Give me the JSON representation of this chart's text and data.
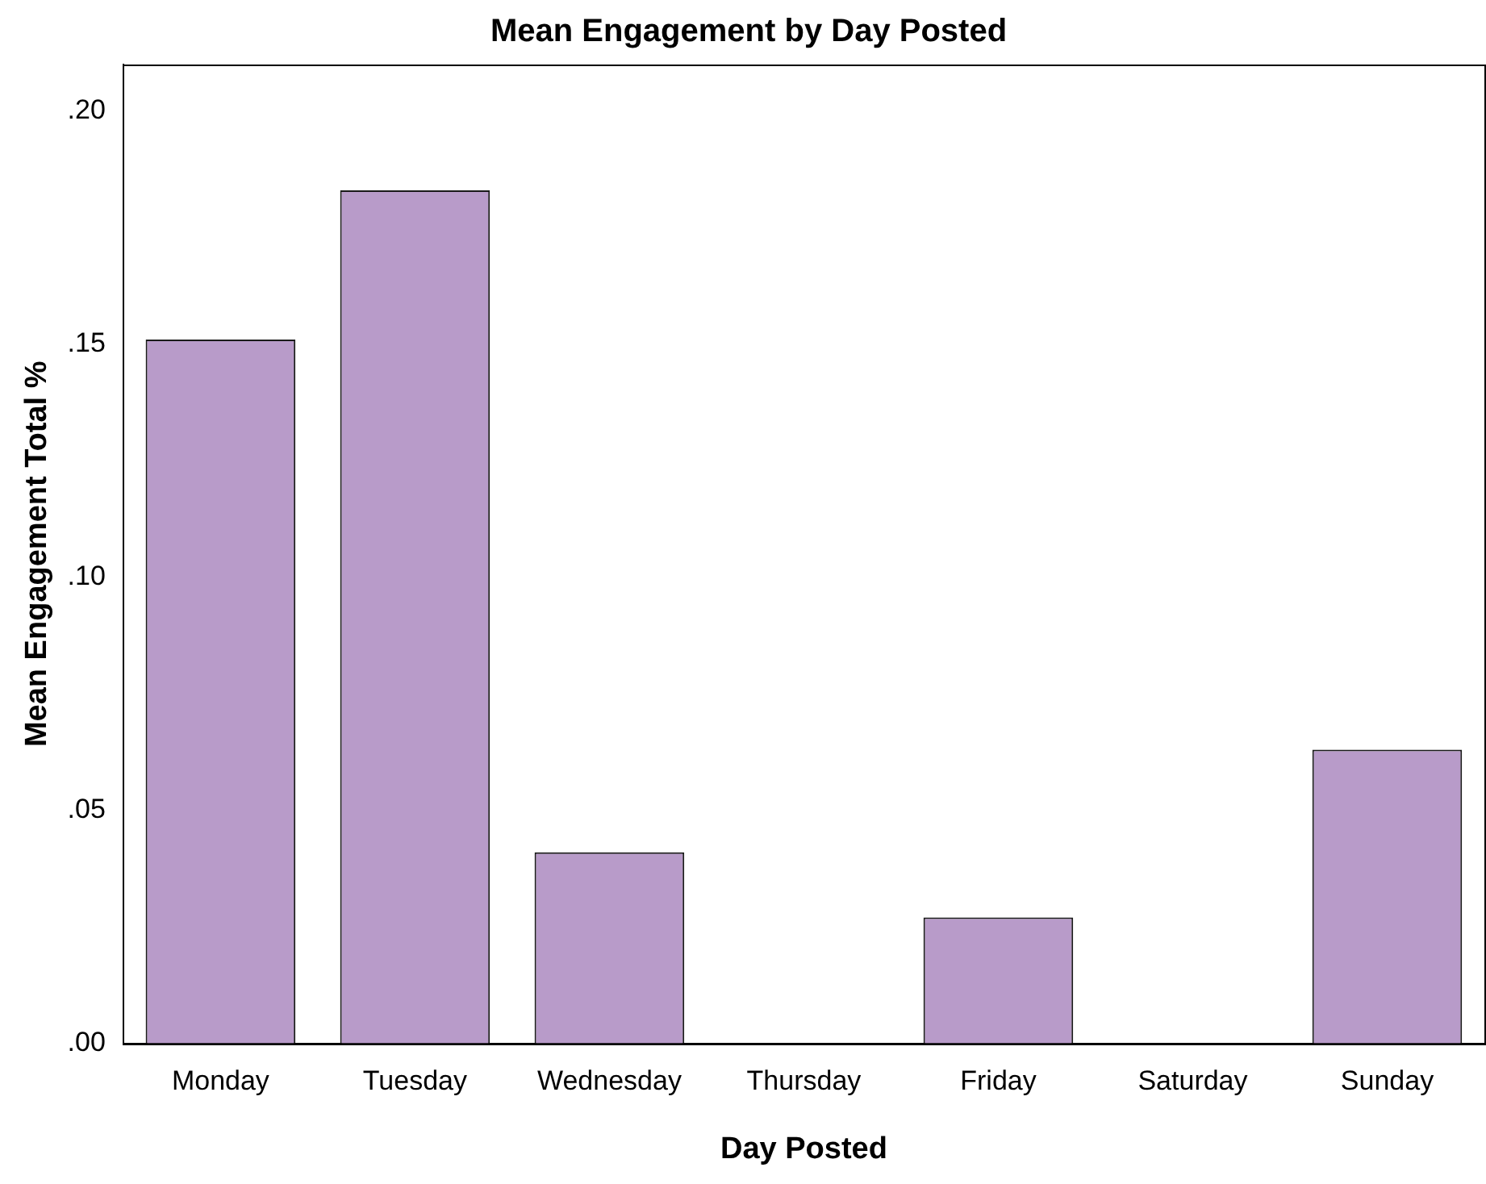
{
  "chart_data": {
    "type": "bar",
    "title": "Mean Engagement by Day Posted",
    "xlabel": "Day Posted",
    "ylabel": "Mean Engagement Total %",
    "categories": [
      "Monday",
      "Tuesday",
      "Wednesday",
      "Thursday",
      "Friday",
      "Saturday",
      "Sunday"
    ],
    "values": [
      0.151,
      0.183,
      0.041,
      0,
      0.027,
      0,
      0.063
    ],
    "color": "#b89bc9",
    "ylim": [
      0,
      0.21
    ],
    "yticks": [
      {
        "value": 0,
        "label": ".00"
      },
      {
        "value": 0.05,
        "label": ".05"
      },
      {
        "value": 0.1,
        "label": ".10"
      },
      {
        "value": 0.15,
        "label": ".15"
      },
      {
        "value": 0.2,
        "label": ".20"
      }
    ],
    "grid": false,
    "legend": false
  }
}
